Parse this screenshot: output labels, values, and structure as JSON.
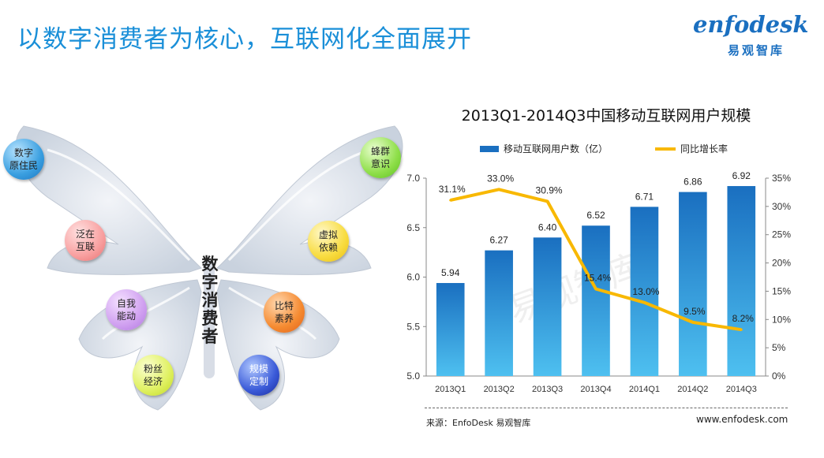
{
  "slide": {
    "title": "以数字消费者为核心，互联网化全面展开"
  },
  "logo": {
    "name": "enfodesk",
    "cn": "易观智库",
    "color": "#1a6fc0"
  },
  "diagram": {
    "center": [
      "数",
      "字",
      "消",
      "费",
      "者"
    ],
    "bubbles": [
      {
        "text1": "数字",
        "text2": "原住民",
        "color": "blue"
      },
      {
        "text1": "泛在",
        "text2": "互联",
        "color": "pink"
      },
      {
        "text1": "自我",
        "text2": "能动",
        "color": "purple"
      },
      {
        "text1": "粉丝",
        "text2": "经济",
        "color": "lime"
      },
      {
        "text1": "蜂群",
        "text2": "意识",
        "color": "green"
      },
      {
        "text1": "虚拟",
        "text2": "依赖",
        "color": "yellow"
      },
      {
        "text1": "比特",
        "text2": "素养",
        "color": "orange"
      },
      {
        "text1": "规模",
        "text2": "定制",
        "color": "navy"
      }
    ]
  },
  "chart_data": {
    "type": "bar",
    "title": "2013Q1-2014Q3中国移动互联网用户规模",
    "categories": [
      "2013Q1",
      "2013Q2",
      "2013Q3",
      "2013Q4",
      "2014Q1",
      "2014Q2",
      "2014Q3"
    ],
    "series": [
      {
        "name": "移动互联网用户数（亿）",
        "type": "bar",
        "axis": "left",
        "values": [
          5.94,
          6.27,
          6.4,
          6.52,
          6.71,
          6.86,
          6.92
        ],
        "labels": [
          "5.94",
          "6.27",
          "6.40",
          "6.52",
          "6.71",
          "6.86",
          "6.92"
        ],
        "color": "#1a6fc0"
      },
      {
        "name": "同比增长率",
        "type": "line",
        "axis": "right",
        "values": [
          31.1,
          33.0,
          30.9,
          15.4,
          13.0,
          9.5,
          8.2
        ],
        "labels": [
          "31.1%",
          "33.0%",
          "30.9%",
          "15.4%",
          "13.0%",
          "9.5%",
          "8.2%"
        ],
        "color": "#f8b800"
      }
    ],
    "y_left": {
      "min": 5.0,
      "max": 7.0,
      "ticks": [
        "5.0",
        "5.5",
        "6.0",
        "6.5",
        "7.0"
      ]
    },
    "y_right": {
      "min": 0,
      "max": 35,
      "ticks": [
        "0%",
        "5%",
        "10%",
        "15%",
        "20%",
        "25%",
        "30%",
        "35%"
      ]
    },
    "legend_position": "top",
    "grid": false
  },
  "footer": {
    "source": "来源：EnfoDesk 易观智库",
    "site": "www.enfodesk.com",
    "watermark": "易观智库"
  }
}
